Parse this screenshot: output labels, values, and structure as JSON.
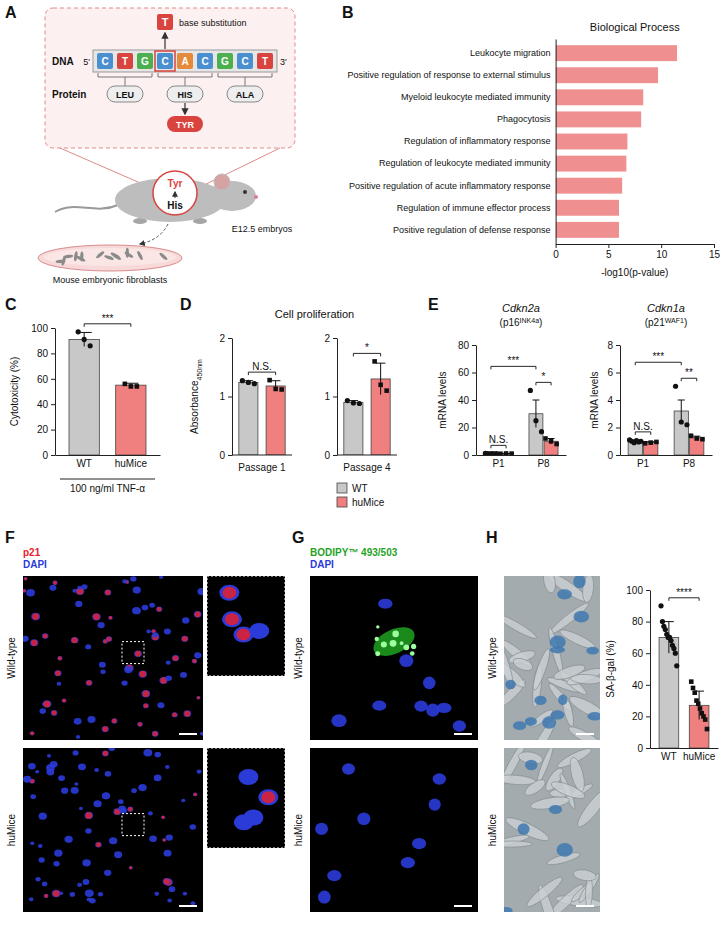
{
  "chart_data": [
    {
      "panel": "B",
      "type": "bar",
      "orientation": "horizontal",
      "title": "Biological Process",
      "xlabel": "-log10(p-value)",
      "categories": [
        "Leukocyte migration",
        "Positive regulation of response to external stimulus",
        "Myeloid leukocyte mediated immunity",
        "Phagocytosis",
        "Regulation of inflammatory response",
        "Regulation of leukocyte mediated immunity",
        "Positive regulation of acute inflammatory response",
        "Regulation of immune effector process",
        "Positive regulation of defense response"
      ],
      "values": [
        11.5,
        9.7,
        8.3,
        8.1,
        6.8,
        6.7,
        6.3,
        6.0,
        6.0
      ],
      "color": "#f08f8f",
      "xlim": [
        0,
        15
      ],
      "xticks": [
        0,
        5,
        10,
        15
      ]
    },
    {
      "panel": "C",
      "type": "bar",
      "ylabel": "Cytotoxicity (%)",
      "xlabel": "100 ng/ml TNF-α",
      "categories": [
        "WT",
        "huMice"
      ],
      "values": [
        91,
        55
      ],
      "errors": [
        5.5,
        1.5
      ],
      "points": [
        [
          97,
          91,
          86
        ],
        [
          56,
          54,
          54
        ]
      ],
      "colors": [
        "#c8c8c8",
        "#f08080"
      ],
      "markers": [
        "circle",
        "square"
      ],
      "ylim": [
        0,
        100
      ],
      "yticks": [
        0,
        20,
        40,
        60,
        80,
        100
      ],
      "annotations": [
        {
          "text": "***",
          "pair": [
            0,
            1
          ]
        }
      ]
    },
    {
      "panel": "D",
      "type": "bar",
      "title": "Cell proliferation",
      "ylabel": "Absorbance",
      "ylabel_subscript": "450nm",
      "categories": [
        "Passage 1",
        "Passage 4"
      ],
      "series": [
        {
          "name": "WT",
          "color": "#c8c8c8",
          "marker": "circle",
          "values": [
            1.24,
            0.9
          ],
          "errors": [
            0.03,
            0.03
          ],
          "points": [
            [
              1.27,
              1.24,
              1.22
            ],
            [
              0.93,
              0.89,
              0.88
            ]
          ]
        },
        {
          "name": "huMice",
          "color": "#f08080",
          "marker": "square",
          "values": [
            1.18,
            1.3
          ],
          "errors": [
            0.09,
            0.27
          ],
          "points": [
            [
              1.28,
              1.13,
              1.12
            ],
            [
              1.6,
              1.2,
              1.1
            ]
          ]
        }
      ],
      "ylim": [
        0,
        2
      ],
      "yticks": [
        0,
        1,
        2
      ],
      "legend": "bottom-right",
      "annotations": [
        {
          "text": "N.S.",
          "pair": [
            [
              0,
              0
            ],
            [
              0,
              1
            ]
          ]
        },
        {
          "text": "*",
          "pair": [
            [
              1,
              0
            ],
            [
              1,
              1
            ]
          ]
        }
      ]
    },
    {
      "panel": "E",
      "type": "bar",
      "title": "Cdkn2a",
      "subtitle_parts": [
        "(p16",
        "INK4a",
        ")"
      ],
      "ylabel": "mRNA levels",
      "categories": [
        "P1",
        "P8"
      ],
      "series": [
        {
          "name": "WT",
          "color": "#c8c8c8",
          "marker": "circle",
          "values": [
            1.0,
            30
          ],
          "errors": [
            0.06,
            10
          ],
          "points": [
            [
              1.2,
              1.0,
              0.9,
              1.1,
              0.8,
              1.0
            ],
            [
              47,
              25,
              17
            ]
          ]
        },
        {
          "name": "huMice",
          "color": "#f08080",
          "marker": "square",
          "values": [
            1.0,
            10
          ],
          "errors": [
            0.1,
            2
          ],
          "points": [
            [
              0.9,
              1.1,
              1.0
            ],
            [
              12,
              10,
              8
            ]
          ]
        }
      ],
      "ylim": [
        0,
        80
      ],
      "yticks": [
        0,
        20,
        40,
        60,
        80
      ],
      "annotations": [
        {
          "text": "N.S.",
          "pair": [
            [
              0,
              0
            ],
            [
              0,
              1
            ]
          ]
        },
        {
          "text": "*",
          "pair": [
            [
              1,
              0
            ],
            [
              1,
              1
            ]
          ]
        },
        {
          "text": "***",
          "pair": [
            [
              0,
              0
            ],
            [
              1,
              0
            ]
          ]
        }
      ]
    },
    {
      "type": "bar",
      "title": "Cdkn1a",
      "subtitle_parts": [
        "(p21",
        "WAF1",
        ")"
      ],
      "ylabel": "mRNA levels",
      "categories": [
        "P1",
        "P8"
      ],
      "series": [
        {
          "name": "WT",
          "color": "#c8c8c8",
          "marker": "circle",
          "values": [
            1.0,
            3.2
          ],
          "errors": [
            0.05,
            0.8
          ],
          "points": [
            [
              1.1,
              1.0,
              0.9,
              1.05,
              0.95,
              1.0
            ],
            [
              5.0,
              2.4,
              2.2
            ]
          ]
        },
        {
          "name": "huMice",
          "color": "#f08080",
          "marker": "square",
          "values": [
            0.9,
            1.25
          ],
          "errors": [
            0.07,
            0.12
          ],
          "points": [
            [
              0.85,
              0.9,
              0.95
            ],
            [
              1.4,
              1.2,
              1.15
            ]
          ]
        }
      ],
      "ylim": [
        0,
        8
      ],
      "yticks": [
        0,
        2,
        4,
        6,
        8
      ],
      "annotations": [
        {
          "text": "N.S.",
          "pair": [
            [
              0,
              0
            ],
            [
              0,
              1
            ]
          ]
        },
        {
          "text": "**",
          "pair": [
            [
              1,
              0
            ],
            [
              1,
              1
            ]
          ]
        },
        {
          "text": "***",
          "pair": [
            [
              0,
              0
            ],
            [
              1,
              0
            ]
          ]
        }
      ]
    },
    {
      "type": "bar",
      "ylabel": "SA-β-gal (%)",
      "categories": [
        "WT",
        "huMice"
      ],
      "values": [
        70,
        27
      ],
      "errors": [
        10,
        9
      ],
      "points": [
        [
          90,
          80,
          77,
          75,
          72,
          70,
          70,
          68,
          65,
          63,
          60,
          52
        ],
        [
          42,
          38,
          35,
          30,
          28,
          25,
          22,
          20,
          18,
          12
        ]
      ],
      "colors": [
        "#c8c8c8",
        "#f08080"
      ],
      "markers": [
        "circle",
        "square"
      ],
      "ylim": [
        0,
        100
      ],
      "yticks": [
        0,
        20,
        40,
        60,
        80,
        100
      ],
      "annotations": [
        {
          "text": "****",
          "pair": [
            0,
            1
          ]
        }
      ]
    }
  ],
  "diagram": {
    "panel": "A",
    "substitution": "T",
    "substitution_label": "base substitution",
    "strand_label": "DNA",
    "five_prime": "5'",
    "three_prime": "3'",
    "bases": [
      "C",
      "T",
      "G",
      "C",
      "A",
      "C",
      "G",
      "C",
      "T"
    ],
    "protein_label": "Protein",
    "codons": [
      "LEU",
      "HIS",
      "ALA"
    ],
    "mutant": "TYR",
    "zoom": [
      "Tyr",
      "His"
    ],
    "embryo_label": "E12.5 embryos",
    "cells_label": "Mouse embryonic fibroblasts"
  },
  "images": [
    {
      "panel": "F",
      "channels": [
        {
          "text": "p21",
          "color": "#e8202a"
        },
        {
          "text": "DAPI",
          "color": "#2a3bd8"
        }
      ],
      "rows": [
        "Wild-type",
        "huMice"
      ]
    },
    {
      "panel": "G",
      "channels": [
        {
          "text": "BODIPY™ 493/503",
          "color": "#1fa31f"
        },
        {
          "text": "DAPI",
          "color": "#2a3bd8"
        }
      ],
      "rows": [
        "Wild-type",
        "huMice"
      ]
    },
    {
      "panel": "H",
      "rows": [
        "Wild-type",
        "huMice"
      ]
    }
  ]
}
